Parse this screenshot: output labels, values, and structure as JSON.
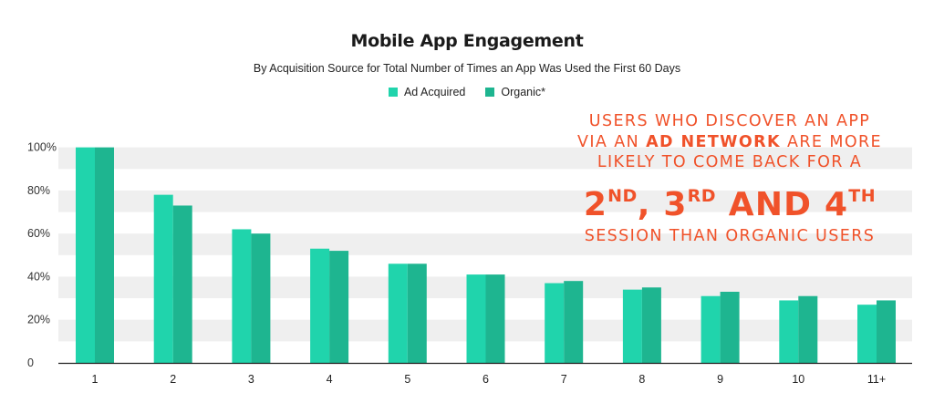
{
  "chart_data": {
    "type": "bar",
    "title": "Mobile App Engagement",
    "subtitle": "By Acquisition Source for Total Number of Times an App Was Used the First 60 Days",
    "categories": [
      "1",
      "2",
      "3",
      "4",
      "5",
      "6",
      "7",
      "8",
      "9",
      "10",
      "11+"
    ],
    "series": [
      {
        "name": "Ad Acquired",
        "color": "#20d4ac",
        "values": [
          100,
          78,
          62,
          53,
          46,
          41,
          37,
          34,
          31,
          29,
          27
        ]
      },
      {
        "name": "Organic*",
        "color": "#1eb590",
        "values": [
          100,
          73,
          60,
          52,
          46,
          41,
          38,
          35,
          33,
          31,
          29
        ]
      }
    ],
    "y_ticks": [
      "0",
      "20%",
      "40%",
      "60%",
      "80%",
      "100%"
    ],
    "ylim": [
      0,
      110
    ],
    "grid": "alternating horizontal bands",
    "legend_position": "top-center"
  },
  "callout": {
    "line1": "USERS WHO DISCOVER AN APP",
    "line2_pre": "VIA AN",
    "line2_bold": "AD NETWORK",
    "line2_post": "ARE MORE",
    "line3": "LIKELY TO COME BACK FOR A",
    "big": [
      {
        "num": "2",
        "sup": "ND",
        "sep": ","
      },
      {
        "num": "3",
        "sup": "RD",
        "sep": "AND"
      },
      {
        "num": "4",
        "sup": "TH",
        "sep": ""
      }
    ],
    "line5": "SESSION THAN ORGANIC USERS",
    "color": "#f0522a"
  }
}
